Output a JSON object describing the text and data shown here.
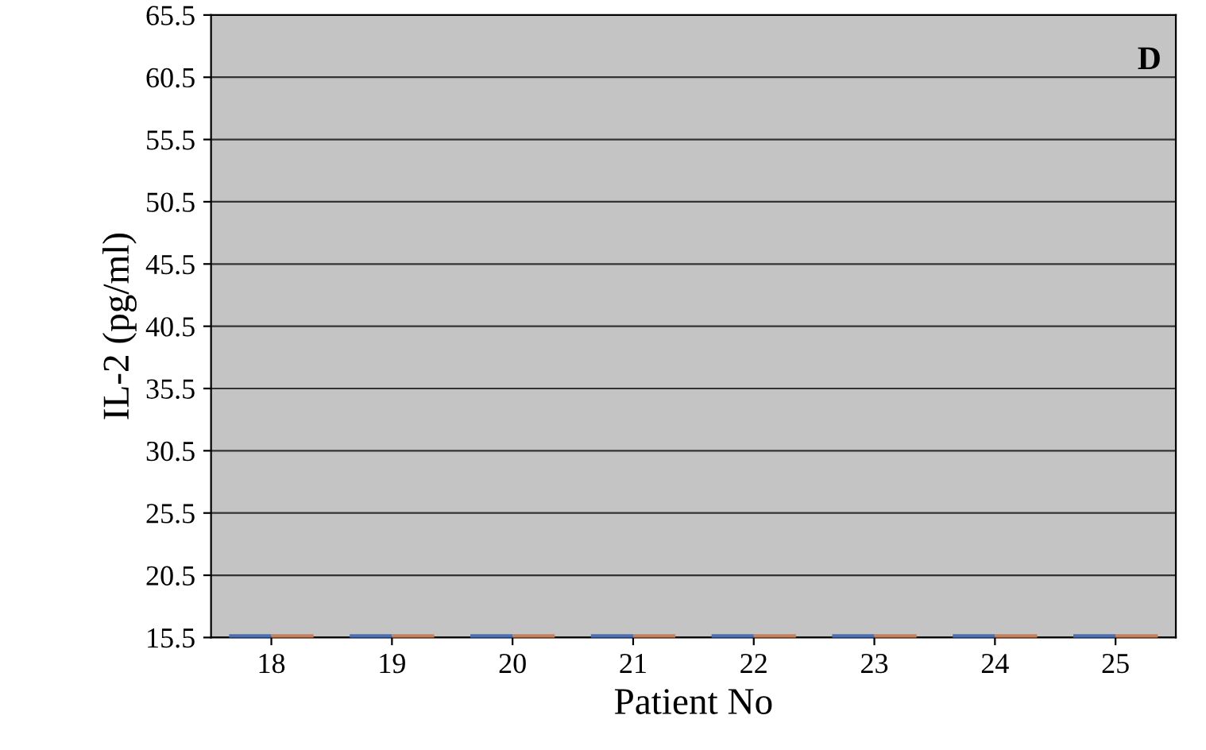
{
  "chart_data": {
    "type": "bar",
    "xlabel": "Patient No",
    "ylabel": "IL-2 (pg/ml)",
    "annotations": [
      "D"
    ],
    "categories": [
      "18",
      "19",
      "20",
      "21",
      "22",
      "23",
      "24",
      "25"
    ],
    "series": [
      {
        "color": "#4a6fb5",
        "values": [
          15.5,
          15.5,
          15.5,
          15.5,
          15.5,
          15.5,
          15.5,
          15.5
        ]
      },
      {
        "color": "#c8805a",
        "values": [
          15.5,
          15.5,
          15.5,
          15.5,
          15.5,
          15.5,
          15.5,
          15.5
        ]
      }
    ],
    "ylim": [
      15.5,
      65.5
    ],
    "yticks": [
      15.5,
      20.5,
      25.5,
      30.5,
      35.5,
      40.5,
      45.5,
      50.5,
      55.5,
      60.5,
      65.5
    ],
    "grid": "y",
    "legend": false
  }
}
